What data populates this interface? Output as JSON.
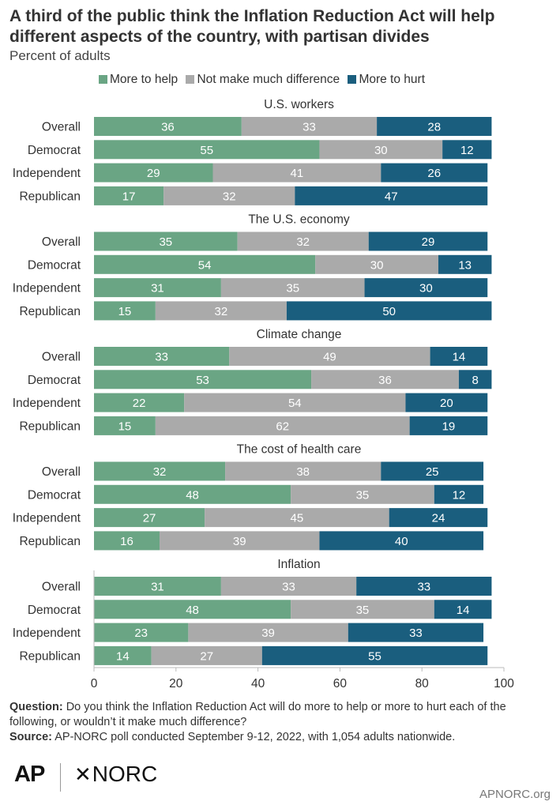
{
  "chart_data": {
    "type": "bar",
    "orientation": "horizontal",
    "stacked": true,
    "title": "A third of the public think the Inflation Reduction Act will help different aspects of the country, with partisan divides",
    "subtitle": "Percent of adults",
    "legend_position": "top",
    "series": [
      {
        "name": "More to help",
        "color": "#6aa584"
      },
      {
        "name": "Not make much difference",
        "color": "#aaaaaa"
      },
      {
        "name": "More to hurt",
        "color": "#1a5e7e"
      }
    ],
    "xlim": [
      0,
      100
    ],
    "x_ticks": [
      "0",
      "20",
      "40",
      "60",
      "80",
      "100"
    ],
    "grid": false,
    "groups": [
      {
        "label": "U.S. workers",
        "rows": [
          {
            "label": "Overall",
            "values": [
              36,
              33,
              28
            ]
          },
          {
            "label": "Democrat",
            "values": [
              55,
              30,
              12
            ]
          },
          {
            "label": "Independent",
            "values": [
              29,
              41,
              26
            ]
          },
          {
            "label": "Republican",
            "values": [
              17,
              32,
              47
            ]
          }
        ]
      },
      {
        "label": "The U.S. economy",
        "rows": [
          {
            "label": "Overall",
            "values": [
              35,
              32,
              29
            ]
          },
          {
            "label": "Democrat",
            "values": [
              54,
              30,
              13
            ]
          },
          {
            "label": "Independent",
            "values": [
              31,
              35,
              30
            ]
          },
          {
            "label": "Republican",
            "values": [
              15,
              32,
              50
            ]
          }
        ]
      },
      {
        "label": "Climate change",
        "rows": [
          {
            "label": "Overall",
            "values": [
              33,
              49,
              14
            ]
          },
          {
            "label": "Democrat",
            "values": [
              53,
              36,
              8
            ]
          },
          {
            "label": "Independent",
            "values": [
              22,
              54,
              20
            ]
          },
          {
            "label": "Republican",
            "values": [
              15,
              62,
              19
            ]
          }
        ]
      },
      {
        "label": "The cost of health care",
        "rows": [
          {
            "label": "Overall",
            "values": [
              32,
              38,
              25
            ]
          },
          {
            "label": "Democrat",
            "values": [
              48,
              35,
              12
            ]
          },
          {
            "label": "Independent",
            "values": [
              27,
              45,
              24
            ]
          },
          {
            "label": "Republican",
            "values": [
              16,
              39,
              40
            ]
          }
        ]
      },
      {
        "label": "Inflation",
        "rows": [
          {
            "label": "Overall",
            "values": [
              31,
              33,
              33
            ]
          },
          {
            "label": "Democrat",
            "values": [
              48,
              35,
              14
            ]
          },
          {
            "label": "Independent",
            "values": [
              23,
              39,
              33
            ]
          },
          {
            "label": "Republican",
            "values": [
              14,
              27,
              55
            ]
          }
        ]
      }
    ]
  },
  "footer": {
    "question_label": "Question:",
    "question_text": "Do you think the Inflation Reduction Act will do more to help or more to hurt each of the following, or wouldn’t it make much difference?",
    "source_label": "Source:",
    "source_text": "AP-NORC poll conducted September 9-12, 2022, with 1,054 adults nationwide."
  },
  "logos": {
    "ap": "AP",
    "norc": "NORC"
  },
  "site": "APNORC.org"
}
